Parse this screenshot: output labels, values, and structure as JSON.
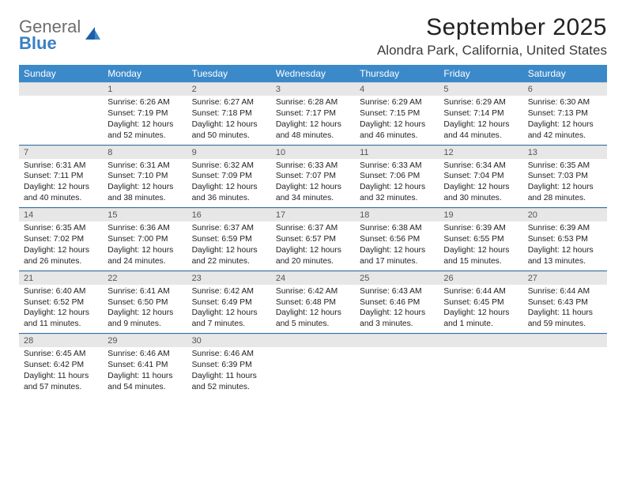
{
  "colors": {
    "header_bg": "#3b89c9",
    "header_text": "#ffffff",
    "daynum_bg": "#e7e7e7",
    "daynum_text": "#555555",
    "week_border": "#2d6ea8",
    "body_text": "#222222",
    "logo_gray": "#6e6e6e",
    "logo_blue": "#3b7fc4"
  },
  "logo": {
    "line1": "General",
    "line2": "Blue"
  },
  "title": "September 2025",
  "location": "Alondra Park, California, United States",
  "day_names": [
    "Sunday",
    "Monday",
    "Tuesday",
    "Wednesday",
    "Thursday",
    "Friday",
    "Saturday"
  ],
  "weeks": [
    [
      {
        "day": "",
        "lines": [
          "",
          "",
          "",
          ""
        ]
      },
      {
        "day": "1",
        "lines": [
          "Sunrise: 6:26 AM",
          "Sunset: 7:19 PM",
          "Daylight: 12 hours",
          "and 52 minutes."
        ]
      },
      {
        "day": "2",
        "lines": [
          "Sunrise: 6:27 AM",
          "Sunset: 7:18 PM",
          "Daylight: 12 hours",
          "and 50 minutes."
        ]
      },
      {
        "day": "3",
        "lines": [
          "Sunrise: 6:28 AM",
          "Sunset: 7:17 PM",
          "Daylight: 12 hours",
          "and 48 minutes."
        ]
      },
      {
        "day": "4",
        "lines": [
          "Sunrise: 6:29 AM",
          "Sunset: 7:15 PM",
          "Daylight: 12 hours",
          "and 46 minutes."
        ]
      },
      {
        "day": "5",
        "lines": [
          "Sunrise: 6:29 AM",
          "Sunset: 7:14 PM",
          "Daylight: 12 hours",
          "and 44 minutes."
        ]
      },
      {
        "day": "6",
        "lines": [
          "Sunrise: 6:30 AM",
          "Sunset: 7:13 PM",
          "Daylight: 12 hours",
          "and 42 minutes."
        ]
      }
    ],
    [
      {
        "day": "7",
        "lines": [
          "Sunrise: 6:31 AM",
          "Sunset: 7:11 PM",
          "Daylight: 12 hours",
          "and 40 minutes."
        ]
      },
      {
        "day": "8",
        "lines": [
          "Sunrise: 6:31 AM",
          "Sunset: 7:10 PM",
          "Daylight: 12 hours",
          "and 38 minutes."
        ]
      },
      {
        "day": "9",
        "lines": [
          "Sunrise: 6:32 AM",
          "Sunset: 7:09 PM",
          "Daylight: 12 hours",
          "and 36 minutes."
        ]
      },
      {
        "day": "10",
        "lines": [
          "Sunrise: 6:33 AM",
          "Sunset: 7:07 PM",
          "Daylight: 12 hours",
          "and 34 minutes."
        ]
      },
      {
        "day": "11",
        "lines": [
          "Sunrise: 6:33 AM",
          "Sunset: 7:06 PM",
          "Daylight: 12 hours",
          "and 32 minutes."
        ]
      },
      {
        "day": "12",
        "lines": [
          "Sunrise: 6:34 AM",
          "Sunset: 7:04 PM",
          "Daylight: 12 hours",
          "and 30 minutes."
        ]
      },
      {
        "day": "13",
        "lines": [
          "Sunrise: 6:35 AM",
          "Sunset: 7:03 PM",
          "Daylight: 12 hours",
          "and 28 minutes."
        ]
      }
    ],
    [
      {
        "day": "14",
        "lines": [
          "Sunrise: 6:35 AM",
          "Sunset: 7:02 PM",
          "Daylight: 12 hours",
          "and 26 minutes."
        ]
      },
      {
        "day": "15",
        "lines": [
          "Sunrise: 6:36 AM",
          "Sunset: 7:00 PM",
          "Daylight: 12 hours",
          "and 24 minutes."
        ]
      },
      {
        "day": "16",
        "lines": [
          "Sunrise: 6:37 AM",
          "Sunset: 6:59 PM",
          "Daylight: 12 hours",
          "and 22 minutes."
        ]
      },
      {
        "day": "17",
        "lines": [
          "Sunrise: 6:37 AM",
          "Sunset: 6:57 PM",
          "Daylight: 12 hours",
          "and 20 minutes."
        ]
      },
      {
        "day": "18",
        "lines": [
          "Sunrise: 6:38 AM",
          "Sunset: 6:56 PM",
          "Daylight: 12 hours",
          "and 17 minutes."
        ]
      },
      {
        "day": "19",
        "lines": [
          "Sunrise: 6:39 AM",
          "Sunset: 6:55 PM",
          "Daylight: 12 hours",
          "and 15 minutes."
        ]
      },
      {
        "day": "20",
        "lines": [
          "Sunrise: 6:39 AM",
          "Sunset: 6:53 PM",
          "Daylight: 12 hours",
          "and 13 minutes."
        ]
      }
    ],
    [
      {
        "day": "21",
        "lines": [
          "Sunrise: 6:40 AM",
          "Sunset: 6:52 PM",
          "Daylight: 12 hours",
          "and 11 minutes."
        ]
      },
      {
        "day": "22",
        "lines": [
          "Sunrise: 6:41 AM",
          "Sunset: 6:50 PM",
          "Daylight: 12 hours",
          "and 9 minutes."
        ]
      },
      {
        "day": "23",
        "lines": [
          "Sunrise: 6:42 AM",
          "Sunset: 6:49 PM",
          "Daylight: 12 hours",
          "and 7 minutes."
        ]
      },
      {
        "day": "24",
        "lines": [
          "Sunrise: 6:42 AM",
          "Sunset: 6:48 PM",
          "Daylight: 12 hours",
          "and 5 minutes."
        ]
      },
      {
        "day": "25",
        "lines": [
          "Sunrise: 6:43 AM",
          "Sunset: 6:46 PM",
          "Daylight: 12 hours",
          "and 3 minutes."
        ]
      },
      {
        "day": "26",
        "lines": [
          "Sunrise: 6:44 AM",
          "Sunset: 6:45 PM",
          "Daylight: 12 hours",
          "and 1 minute."
        ]
      },
      {
        "day": "27",
        "lines": [
          "Sunrise: 6:44 AM",
          "Sunset: 6:43 PM",
          "Daylight: 11 hours",
          "and 59 minutes."
        ]
      }
    ],
    [
      {
        "day": "28",
        "lines": [
          "Sunrise: 6:45 AM",
          "Sunset: 6:42 PM",
          "Daylight: 11 hours",
          "and 57 minutes."
        ]
      },
      {
        "day": "29",
        "lines": [
          "Sunrise: 6:46 AM",
          "Sunset: 6:41 PM",
          "Daylight: 11 hours",
          "and 54 minutes."
        ]
      },
      {
        "day": "30",
        "lines": [
          "Sunrise: 6:46 AM",
          "Sunset: 6:39 PM",
          "Daylight: 11 hours",
          "and 52 minutes."
        ]
      },
      {
        "day": "",
        "lines": [
          "",
          "",
          "",
          ""
        ]
      },
      {
        "day": "",
        "lines": [
          "",
          "",
          "",
          ""
        ]
      },
      {
        "day": "",
        "lines": [
          "",
          "",
          "",
          ""
        ]
      },
      {
        "day": "",
        "lines": [
          "",
          "",
          "",
          ""
        ]
      }
    ]
  ]
}
